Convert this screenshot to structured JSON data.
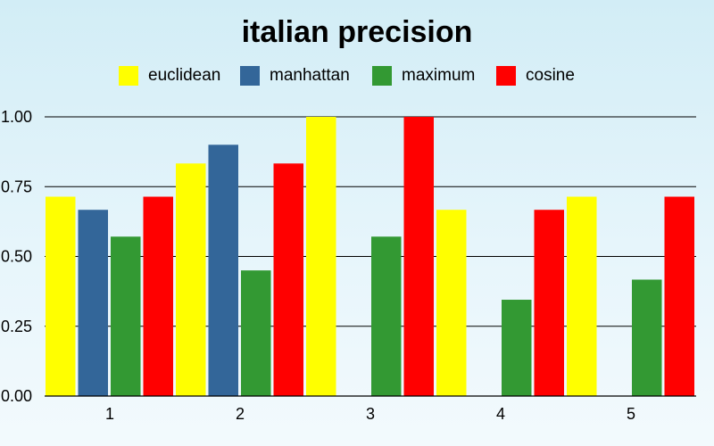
{
  "chart_data": {
    "type": "bar",
    "title": "italian precision",
    "xlabel": "",
    "ylabel": "",
    "categories": [
      "1",
      "2",
      "3",
      "4",
      "5"
    ],
    "ylim": [
      0,
      1
    ],
    "yticks": [
      "0.00",
      "0.25",
      "0.50",
      "0.75",
      "1.00"
    ],
    "grid": true,
    "legend_position": "top",
    "series": [
      {
        "name": "euclidean",
        "color": "#ffff00",
        "values": [
          0.714,
          0.833,
          1.0,
          0.667,
          0.714
        ]
      },
      {
        "name": "manhattan",
        "color": "#336699",
        "values": [
          0.667,
          0.9,
          0.0,
          0.0,
          0.0
        ]
      },
      {
        "name": "maximum",
        "color": "#339933",
        "values": [
          0.571,
          0.45,
          0.571,
          0.345,
          0.417
        ]
      },
      {
        "name": "cosine",
        "color": "#ff0000",
        "values": [
          0.714,
          0.833,
          1.0,
          0.667,
          0.714
        ]
      }
    ]
  }
}
